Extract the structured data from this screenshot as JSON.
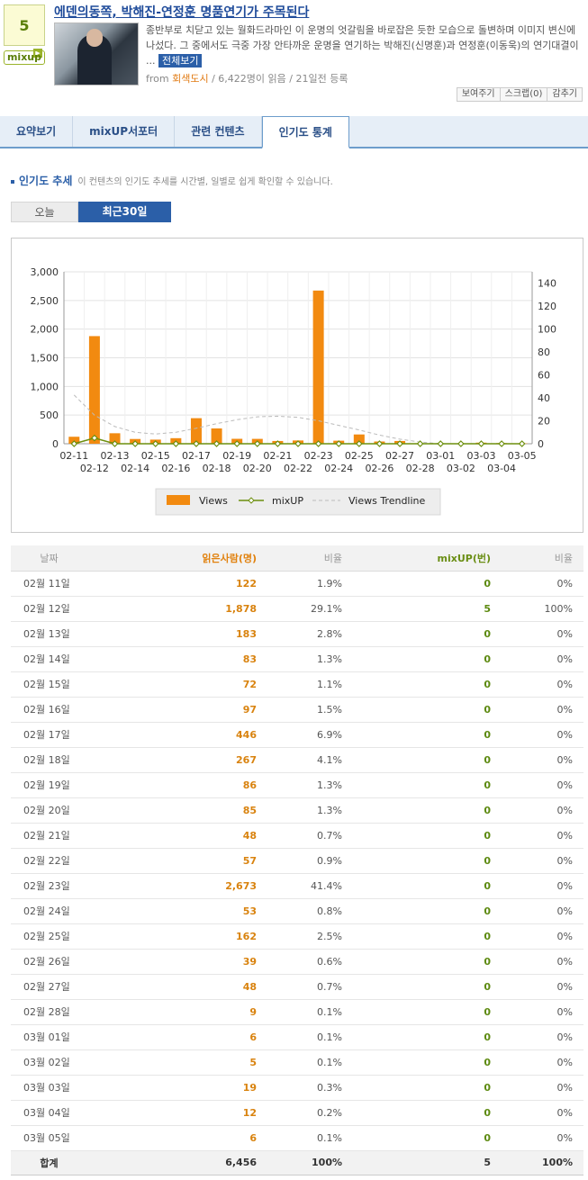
{
  "mix_count": "5",
  "mix_label": "mixup",
  "article": {
    "title": "에덴의동쪽, 박해진-연정훈 명품연기가 주목된다",
    "description": "종반부로 치닫고 있는 월화드라마인 이 운명의 엇갈림을 바로잡은 듯한 모습으로 돌변하며 이미지 변신에 나섰다. 그 중에서도 극중 가장 안타까운 운명을 연기하는 박해진(신명훈)과 연정훈(이동욱)의 연기대결이 ...",
    "full_view": "전체보기",
    "meta_from": "from",
    "meta_source": "회색도시",
    "meta_rest": "/ 6,422명이 읽음 / 21일전 등록"
  },
  "actions": [
    "보여주기",
    "스크랩(0)",
    "감추기"
  ],
  "tabs": [
    "요약보기",
    "mixUP서포터",
    "관련 컨텐츠",
    "인기도 통계"
  ],
  "section": {
    "title": "인기도 추세",
    "subtitle": "이 컨텐츠의 인기도 추세를 시간별, 일별로 쉽게 확인할 수 있습니다."
  },
  "period": {
    "today": "오늘",
    "recent30": "최근30일"
  },
  "table_headers": [
    "날짜",
    "읽은사람(명)",
    "비율",
    "mixUP(번)",
    "비율"
  ],
  "table_rows": [
    [
      "02월 11일",
      "122",
      "1.9%",
      "0",
      "0%"
    ],
    [
      "02월 12일",
      "1,878",
      "29.1%",
      "5",
      "100%"
    ],
    [
      "02월 13일",
      "183",
      "2.8%",
      "0",
      "0%"
    ],
    [
      "02월 14일",
      "83",
      "1.3%",
      "0",
      "0%"
    ],
    [
      "02월 15일",
      "72",
      "1.1%",
      "0",
      "0%"
    ],
    [
      "02월 16일",
      "97",
      "1.5%",
      "0",
      "0%"
    ],
    [
      "02월 17일",
      "446",
      "6.9%",
      "0",
      "0%"
    ],
    [
      "02월 18일",
      "267",
      "4.1%",
      "0",
      "0%"
    ],
    [
      "02월 19일",
      "86",
      "1.3%",
      "0",
      "0%"
    ],
    [
      "02월 20일",
      "85",
      "1.3%",
      "0",
      "0%"
    ],
    [
      "02월 21일",
      "48",
      "0.7%",
      "0",
      "0%"
    ],
    [
      "02월 22일",
      "57",
      "0.9%",
      "0",
      "0%"
    ],
    [
      "02월 23일",
      "2,673",
      "41.4%",
      "0",
      "0%"
    ],
    [
      "02월 24일",
      "53",
      "0.8%",
      "0",
      "0%"
    ],
    [
      "02월 25일",
      "162",
      "2.5%",
      "0",
      "0%"
    ],
    [
      "02월 26일",
      "39",
      "0.6%",
      "0",
      "0%"
    ],
    [
      "02월 27일",
      "48",
      "0.7%",
      "0",
      "0%"
    ],
    [
      "02월 28일",
      "9",
      "0.1%",
      "0",
      "0%"
    ],
    [
      "03월 01일",
      "6",
      "0.1%",
      "0",
      "0%"
    ],
    [
      "03월 02일",
      "5",
      "0.1%",
      "0",
      "0%"
    ],
    [
      "03월 03일",
      "19",
      "0.3%",
      "0",
      "0%"
    ],
    [
      "03월 04일",
      "12",
      "0.2%",
      "0",
      "0%"
    ],
    [
      "03월 05일",
      "6",
      "0.1%",
      "0",
      "0%"
    ]
  ],
  "table_total": [
    "합계",
    "6,456",
    "100%",
    "5",
    "100%"
  ],
  "chart_data": {
    "type": "bar",
    "categories": [
      "02-11",
      "02-12",
      "02-13",
      "02-14",
      "02-15",
      "02-16",
      "02-17",
      "02-18",
      "02-19",
      "02-20",
      "02-21",
      "02-22",
      "02-23",
      "02-24",
      "02-25",
      "02-26",
      "02-27",
      "02-28",
      "03-01",
      "03-02",
      "03-03",
      "03-04",
      "03-05"
    ],
    "series": [
      {
        "name": "Views",
        "type": "bar",
        "axis": "left",
        "color": "#f28a10",
        "values": [
          122,
          1878,
          183,
          83,
          72,
          97,
          446,
          267,
          86,
          85,
          48,
          57,
          2673,
          53,
          162,
          39,
          48,
          9,
          6,
          5,
          19,
          12,
          6
        ]
      },
      {
        "name": "mixUP",
        "type": "line",
        "axis": "right",
        "color": "#6d8f0e",
        "values": [
          0,
          5,
          0,
          0,
          0,
          0,
          0,
          0,
          0,
          0,
          0,
          0,
          0,
          0,
          0,
          0,
          0,
          0,
          0,
          0,
          0,
          0,
          0
        ]
      },
      {
        "name": "Views Trendline",
        "type": "line",
        "axis": "left",
        "color": "#bbbbbb",
        "dashed": true,
        "values": [
          850,
          500,
          300,
          200,
          170,
          200,
          270,
          350,
          420,
          470,
          480,
          460,
          400,
          320,
          240,
          150,
          80,
          30,
          0,
          0,
          0,
          0,
          0
        ]
      }
    ],
    "ylim_left": [
      0,
      3000
    ],
    "yticks_left": [
      "0",
      "500",
      "1,000",
      "1,500",
      "2,000",
      "2,500",
      "3,000"
    ],
    "ylim_right": [
      0,
      150
    ],
    "yticks_right": [
      "0",
      "20",
      "40",
      "60",
      "80",
      "100",
      "120",
      "140"
    ],
    "legend": [
      "Views",
      "mixUP",
      "Views Trendline"
    ],
    "legend_position": "bottom",
    "grid": true
  }
}
